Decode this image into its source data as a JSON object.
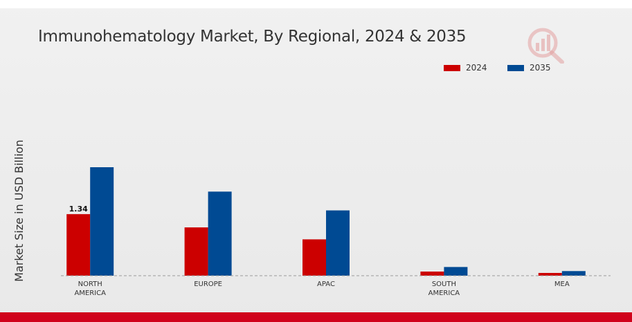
{
  "chart_data": {
    "type": "bar",
    "title": "Immunohematology Market, By Regional, 2024 & 2035",
    "ylabel": "Market Size in USD Billion",
    "xlabel": "",
    "categories": [
      [
        "NORTH",
        "AMERICA"
      ],
      [
        "EUROPE"
      ],
      [
        "APAC"
      ],
      [
        "SOUTH",
        "AMERICA"
      ],
      [
        "MEA"
      ]
    ],
    "series": [
      {
        "name": "2024",
        "values": [
          1.34,
          1.05,
          0.79,
          0.09,
          0.06
        ],
        "color": "#cc0000"
      },
      {
        "name": "2035",
        "values": [
          2.36,
          1.83,
          1.42,
          0.19,
          0.1
        ],
        "color": "#004a93"
      }
    ],
    "data_labels": [
      {
        "series": 0,
        "index": 0,
        "text": "1.34"
      }
    ],
    "ylim": [
      0,
      2.4
    ],
    "grid": false,
    "legend_position": "top-right"
  },
  "colors": {
    "bottom_bar": "#d0021b",
    "logo": "#d9534f"
  },
  "logo_icon": "market-research-logo-icon"
}
